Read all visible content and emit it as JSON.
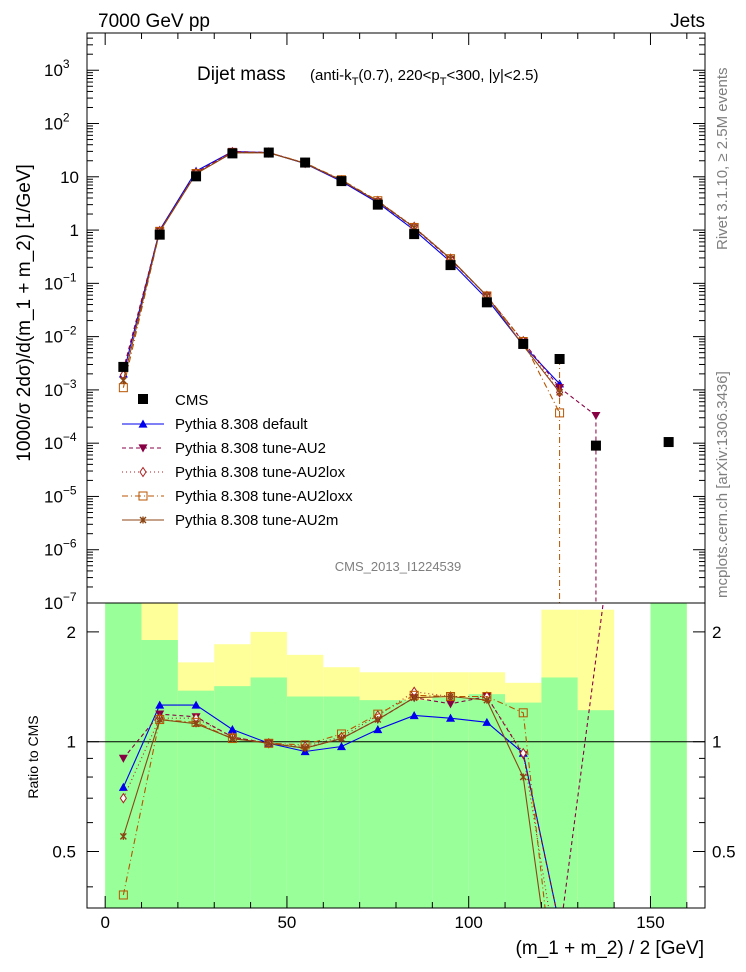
{
  "header": {
    "left": "7000 GeV pp",
    "right": "Jets"
  },
  "side": {
    "rivet": "Rivet 3.1.10, ≥ 2.5M events",
    "mcplots": "mcplots.cern.ch [arXiv:1306.3436]"
  },
  "chart_data": {
    "type": "line",
    "title": {
      "main": "Dijet mass",
      "sub_pre": "(anti-k",
      "sub_T1": "T",
      "sub_mid": "(0.7), 220<p",
      "sub_T2": "T",
      "sub_post": "<300, |y|<2.5)"
    },
    "xlabel": "(m_1 + m_2) / 2 [GeV]",
    "ylabel": "1000/σ 2dσ)/d(m_1 + m_2) [1/GeV]",
    "ratio_ylabel": "Ratio to CMS",
    "watermark": "CMS_2013_I1224539",
    "xlim": [
      -5,
      165
    ],
    "ylim": [
      1e-07,
      5000
    ],
    "yscale": "log",
    "ratio_ylim": [
      0.35,
      2.4
    ],
    "x_ticks": [
      "0",
      "50",
      "100",
      "150"
    ],
    "y_ticks": [
      {
        "base": "10",
        "exp": "−7"
      },
      {
        "base": "10",
        "exp": "−6"
      },
      {
        "base": "10",
        "exp": "−5"
      },
      {
        "base": "10",
        "exp": "−4"
      },
      {
        "base": "10",
        "exp": "−3"
      },
      {
        "base": "10",
        "exp": "−2"
      },
      {
        "base": "10",
        "exp": "−1"
      },
      {
        "base": "1",
        "exp": ""
      },
      {
        "base": "10",
        "exp": ""
      },
      {
        "base": "10",
        "exp": "2"
      },
      {
        "base": "10",
        "exp": "3"
      }
    ],
    "ratio_ticks": [
      "0.5",
      "1",
      "2"
    ],
    "bins": [
      [
        0,
        10
      ],
      [
        10,
        20
      ],
      [
        20,
        30
      ],
      [
        30,
        40
      ],
      [
        40,
        50
      ],
      [
        50,
        60
      ],
      [
        60,
        70
      ],
      [
        70,
        80
      ],
      [
        80,
        90
      ],
      [
        90,
        100
      ],
      [
        100,
        110
      ],
      [
        110,
        120
      ],
      [
        120,
        130
      ],
      [
        130,
        140
      ],
      [
        150,
        160
      ]
    ],
    "bands": {
      "green": [
        [
          0.35,
          2.4
        ],
        [
          0.35,
          1.9
        ],
        [
          0.35,
          1.38
        ],
        [
          0.35,
          1.42
        ],
        [
          0.35,
          1.5
        ],
        [
          0.35,
          1.33
        ],
        [
          0.35,
          1.33
        ],
        [
          0.35,
          1.3
        ],
        [
          0.35,
          1.3
        ],
        [
          0.35,
          1.32
        ],
        [
          0.35,
          1.35
        ],
        [
          0.35,
          1.28
        ],
        [
          0.35,
          1.5
        ],
        [
          0.35,
          1.22
        ],
        [
          0.35,
          2.4
        ]
      ],
      "yellow": [
        [
          0.35,
          2.4
        ],
        [
          0.35,
          2.4
        ],
        [
          0.72,
          1.65
        ],
        [
          0.72,
          1.85
        ],
        [
          0.48,
          2.0
        ],
        [
          0.35,
          1.73
        ],
        [
          0.72,
          1.6
        ],
        [
          0.72,
          1.55
        ],
        [
          0.82,
          1.55
        ],
        [
          0.8,
          1.55
        ],
        [
          0.72,
          1.55
        ],
        [
          0.62,
          1.45
        ],
        [
          0.35,
          2.3
        ],
        [
          0.35,
          2.3
        ],
        [
          0.35,
          2.4
        ]
      ]
    },
    "cms": {
      "name": "CMS",
      "x": [
        5,
        15,
        25,
        35,
        45,
        55,
        65,
        75,
        85,
        95,
        105,
        115,
        125,
        135,
        155
      ],
      "y": [
        0.0027,
        0.82,
        10.2,
        27.5,
        28.5,
        18.5,
        8.3,
        3.0,
        0.84,
        0.22,
        0.044,
        0.0073,
        0.0038,
        9e-05,
        0.000105
      ]
    },
    "series": [
      {
        "name": "Pythia 8.308 default",
        "color": "#0000ee",
        "marker": "tri-up",
        "dash": "",
        "x": [
          5,
          15,
          25,
          35,
          45,
          55,
          65,
          75,
          85,
          95,
          105,
          115,
          125
        ],
        "y": [
          0.002,
          1.0,
          12.8,
          29.8,
          28.5,
          17.7,
          8.2,
          3.25,
          1.0,
          0.254,
          0.051,
          0.0069,
          0.0013
        ],
        "ratio_x": [
          5,
          15,
          25,
          35,
          45,
          55,
          65,
          75,
          85,
          95,
          105,
          115,
          124
        ],
        "ratio": [
          0.75,
          1.26,
          1.26,
          1.08,
          0.99,
          0.94,
          0.97,
          1.08,
          1.18,
          1.16,
          1.13,
          0.93,
          0.35
        ]
      },
      {
        "name": "Pythia 8.308 tune-AU2",
        "color": "#880044",
        "marker": "tri-down",
        "dash": "4,3",
        "x": [
          5,
          15,
          25,
          35,
          45,
          55,
          65,
          75,
          85,
          95,
          105,
          115,
          125,
          135
        ],
        "y": [
          0.0024,
          0.98,
          11.9,
          29.8,
          28.6,
          17.9,
          8.4,
          3.4,
          1.1,
          0.28,
          0.058,
          0.008,
          0.0011,
          0.00033
        ],
        "ratio_x": [
          5,
          15,
          25,
          35,
          45,
          55,
          65,
          75,
          85,
          95,
          105,
          115,
          124,
          126,
          137
        ],
        "ratio": [
          0.9,
          1.19,
          1.17,
          1.03,
          0.99,
          0.96,
          1.02,
          1.15,
          1.32,
          1.27,
          1.33,
          0.92,
          0.35,
          0.35,
          2.4
        ]
      },
      {
        "name": "Pythia 8.308 tune-AU2lox",
        "color": "#aa2222",
        "marker": "diamond",
        "dash": "1,3",
        "x": [
          5,
          15,
          25,
          35,
          45,
          55,
          65,
          75,
          85,
          95,
          105,
          115,
          125
        ],
        "y": [
          0.0019,
          0.95,
          11.8,
          29.0,
          28.6,
          18.2,
          8.6,
          3.5,
          1.15,
          0.29,
          0.058,
          0.0082,
          0.0009
        ],
        "ratio_x": [
          5,
          15,
          25,
          35,
          45,
          55,
          65,
          75,
          85,
          95,
          105,
          115,
          122
        ],
        "ratio": [
          0.7,
          1.16,
          1.16,
          1.03,
          0.99,
          0.97,
          1.03,
          1.18,
          1.37,
          1.33,
          1.33,
          0.93,
          0.35
        ]
      },
      {
        "name": "Pythia 8.308 tune-AU2loxx",
        "color": "#b85400",
        "marker": "square-open",
        "dash": "6,3,1,3",
        "x": [
          5,
          15,
          25,
          35,
          45,
          55,
          65,
          75,
          85,
          95,
          105,
          115,
          125
        ],
        "y": [
          0.0011,
          0.94,
          11.5,
          28.3,
          28.3,
          18.2,
          8.8,
          3.55,
          1.12,
          0.29,
          0.058,
          0.0081,
          0.00037
        ],
        "ratio_x": [
          5,
          15,
          25,
          35,
          45,
          55,
          65,
          75,
          85,
          95,
          105,
          115,
          121
        ],
        "ratio": [
          0.38,
          1.15,
          1.13,
          1.02,
          0.99,
          0.98,
          1.05,
          1.19,
          1.34,
          1.33,
          1.33,
          1.2,
          0.35
        ]
      },
      {
        "name": "Pythia 8.308 tune-AU2m",
        "color": "#8b4513",
        "marker": "star",
        "dash": "",
        "x": [
          5,
          15,
          25,
          35,
          45,
          55,
          65,
          75,
          85,
          95,
          105,
          115,
          125
        ],
        "y": [
          0.0015,
          0.93,
          11.4,
          28.2,
          28.1,
          17.9,
          8.6,
          3.45,
          1.12,
          0.29,
          0.058,
          0.0068,
          0.0009
        ],
        "ratio_x": [
          5,
          15,
          25,
          35,
          45,
          55,
          65,
          75,
          85,
          95,
          105,
          115,
          120
        ],
        "ratio": [
          0.55,
          1.15,
          1.12,
          1.02,
          0.99,
          0.96,
          1.02,
          1.15,
          1.32,
          1.33,
          1.3,
          0.8,
          0.35
        ]
      }
    ]
  }
}
